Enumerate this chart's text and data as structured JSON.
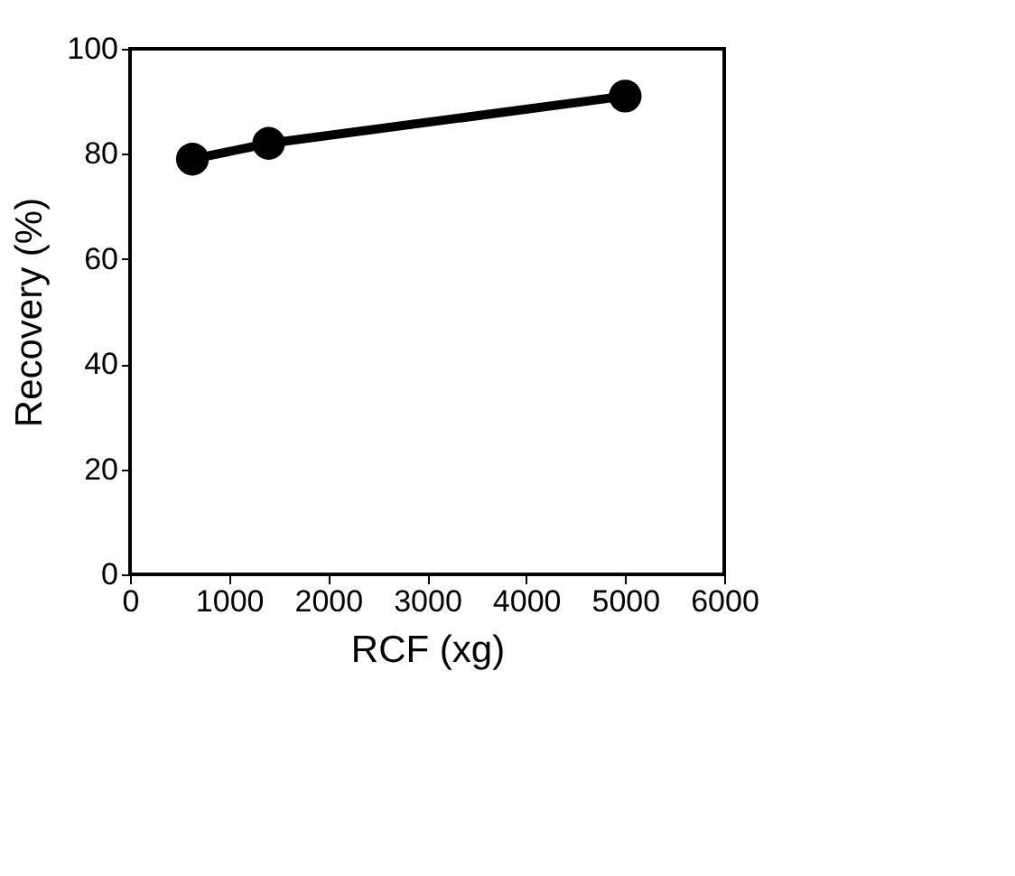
{
  "chart_data": {
    "type": "line",
    "xlabel": "RCF (xg)",
    "ylabel": "Recovery (%)",
    "x": [
      630,
      1400,
      5000
    ],
    "series": [
      {
        "color": "#000000",
        "values": [
          79,
          82,
          91
        ]
      }
    ],
    "xlim": [
      0,
      6000
    ],
    "xticks": [
      0,
      1000,
      2000,
      3000,
      4000,
      5000,
      6000
    ],
    "ylim": [
      0,
      100
    ],
    "yticks": [
      0,
      20,
      40,
      60,
      80,
      100
    ],
    "marker": "circle",
    "line_style": "solid",
    "grid": false
  }
}
